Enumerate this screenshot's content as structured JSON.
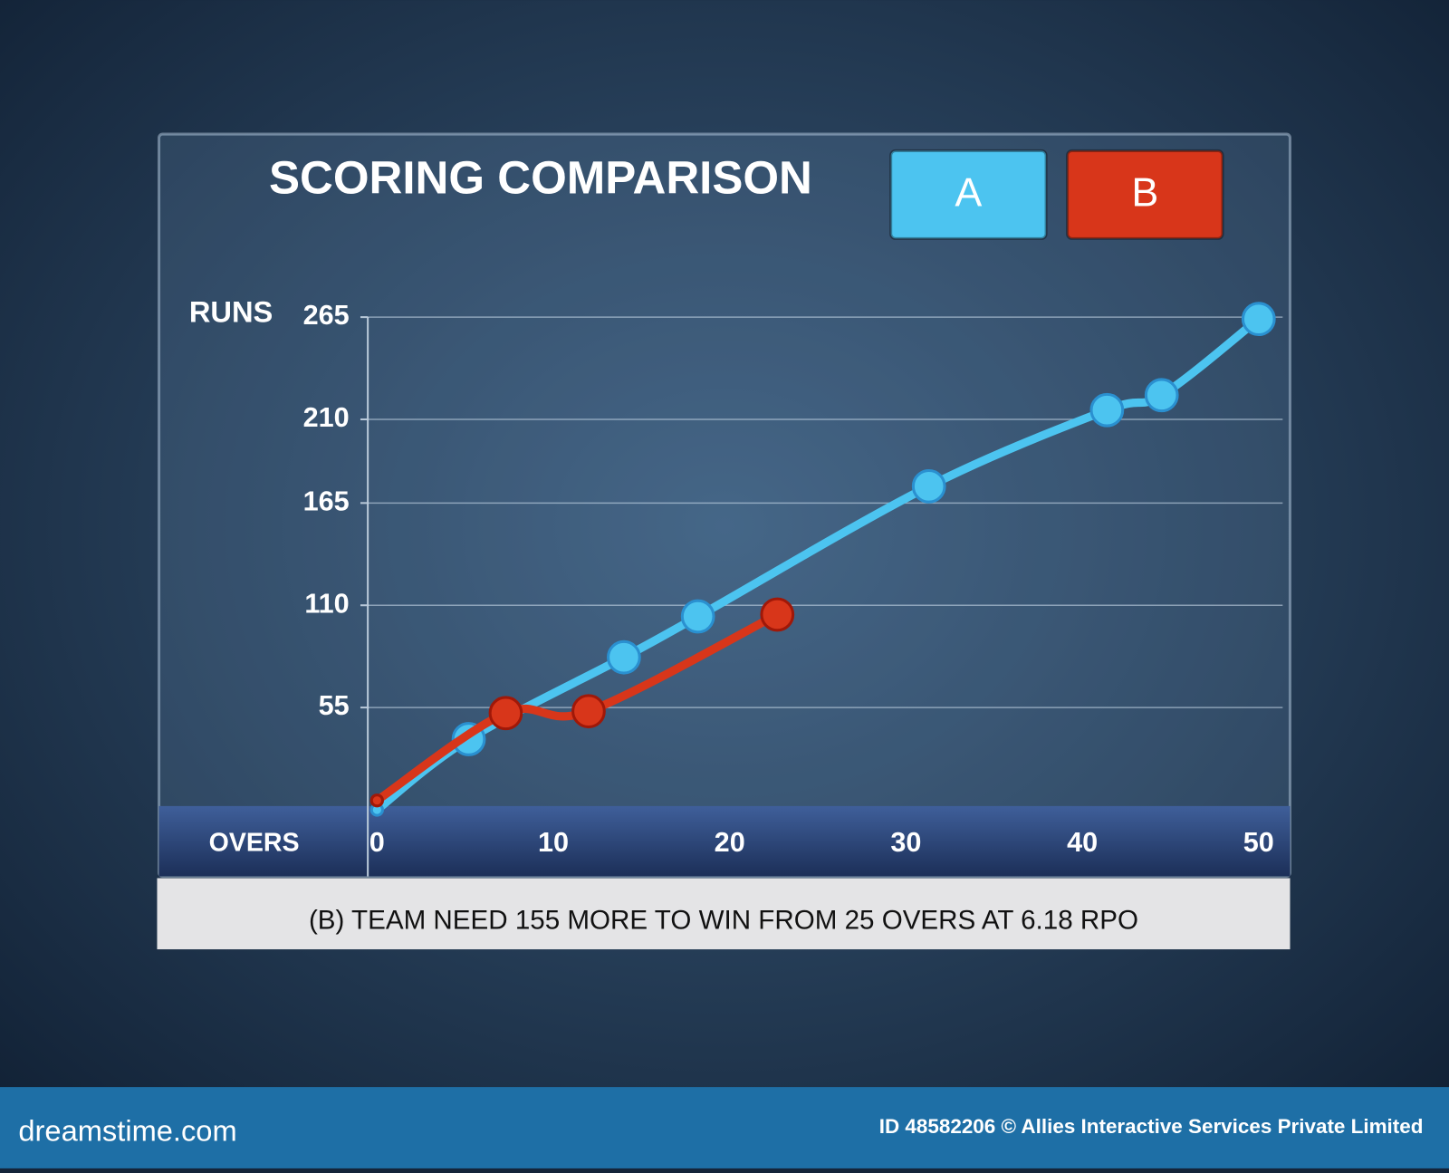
{
  "chart_data": {
    "type": "line",
    "title": "SCORING COMPARISON",
    "y_label": "RUNS",
    "x_label": "OVERS",
    "series": [
      {
        "name": "A",
        "color": "#4cc4f0",
        "x": [
          0,
          5.2,
          14,
          18.2,
          31.3,
          41.4,
          44.5,
          50
        ],
        "values": [
          0,
          38,
          82,
          104,
          174,
          215,
          223,
          264
        ]
      },
      {
        "name": "B",
        "color": "#d8361a",
        "x": [
          0,
          7.3,
          12,
          22.7
        ],
        "values": [
          5,
          52,
          53,
          105
        ]
      }
    ],
    "xlim": [
      0,
      50
    ],
    "xticks": [
      0,
      10,
      20,
      30,
      40,
      50
    ],
    "ylim": [
      0,
      265
    ],
    "yticks": [
      55,
      110,
      165,
      210,
      265
    ],
    "grid": true,
    "caption": "(B) TEAM NEED 155 MORE TO WIN FROM 25 OVERS AT 6.18 RPO"
  },
  "footer": {
    "site": "dreamstime.com",
    "credit": "ID 48582206 © Allies Interactive Services Private Limited"
  }
}
